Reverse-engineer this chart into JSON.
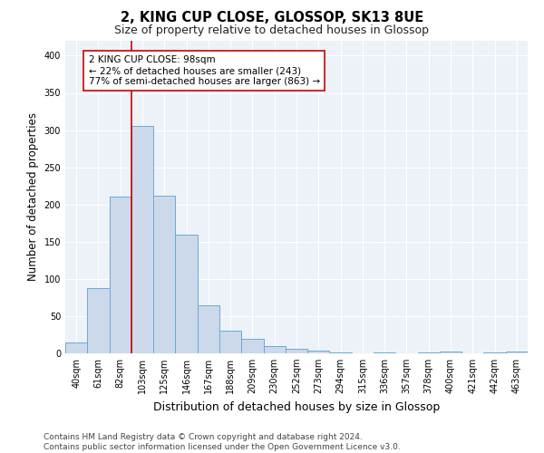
{
  "title1": "2, KING CUP CLOSE, GLOSSOP, SK13 8UE",
  "title2": "Size of property relative to detached houses in Glossop",
  "xlabel": "Distribution of detached houses by size in Glossop",
  "ylabel": "Number of detached properties",
  "categories": [
    "40sqm",
    "61sqm",
    "82sqm",
    "103sqm",
    "125sqm",
    "146sqm",
    "167sqm",
    "188sqm",
    "209sqm",
    "230sqm",
    "252sqm",
    "273sqm",
    "294sqm",
    "315sqm",
    "336sqm",
    "357sqm",
    "378sqm",
    "400sqm",
    "421sqm",
    "442sqm",
    "463sqm"
  ],
  "values": [
    15,
    88,
    211,
    305,
    212,
    160,
    64,
    30,
    20,
    10,
    6,
    4,
    1,
    0,
    1,
    0,
    1,
    2,
    0,
    1,
    3
  ],
  "bar_color": "#ccd9eb",
  "bar_edge_color": "#6aaad4",
  "vline_x_index": 3,
  "vline_color": "#cc0000",
  "annotation_line1": "2 KING CUP CLOSE: 98sqm",
  "annotation_line2": "← 22% of detached houses are smaller (243)",
  "annotation_line3": "77% of semi-detached houses are larger (863) →",
  "ylim": [
    0,
    420
  ],
  "yticks": [
    0,
    50,
    100,
    150,
    200,
    250,
    300,
    350,
    400
  ],
  "footer1": "Contains HM Land Registry data © Crown copyright and database right 2024.",
  "footer2": "Contains public sector information licensed under the Open Government Licence v3.0.",
  "bg_color": "#edf1f8",
  "grid_color": "#ffffff",
  "title1_fontsize": 10.5,
  "title2_fontsize": 9,
  "tick_fontsize": 7,
  "ylabel_fontsize": 8.5,
  "xlabel_fontsize": 9,
  "ann_fontsize": 7.5,
  "footer_fontsize": 6.5
}
